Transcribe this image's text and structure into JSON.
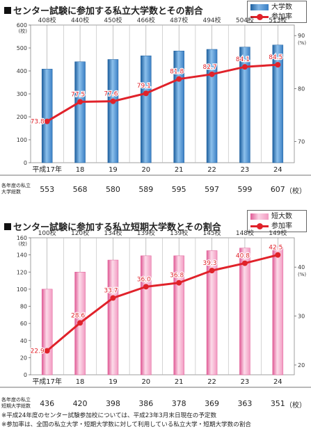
{
  "chart_data": [
    {
      "type": "bar",
      "title": "センター試験に参加する私立大学数とその割合",
      "categories": [
        "平成17年",
        "18",
        "19",
        "20",
        "21",
        "22",
        "23",
        "24"
      ],
      "series": [
        {
          "name": "大学数",
          "values": [
            408,
            440,
            450,
            466,
            487,
            494,
            504,
            513
          ],
          "axis": "left",
          "color": "#3a7fc4"
        },
        {
          "name": "参加率",
          "values": [
            73.8,
            77.5,
            77.6,
            79.1,
            81.8,
            82.7,
            84.1,
            84.5
          ],
          "axis": "right",
          "color": "#e0222a"
        }
      ],
      "bar_labels": [
        "408校",
        "440校",
        "450校",
        "466校",
        "487校",
        "494校",
        "504校",
        "513校"
      ],
      "rate_labels": [
        "73.8",
        "77.5",
        "77.6",
        "79.1",
        "81.8",
        "82.7",
        "84.1",
        "84.5"
      ],
      "ylim_left": [
        0,
        600
      ],
      "yticks_left": [
        "0",
        "100",
        "200",
        "300",
        "400",
        "500",
        "600"
      ],
      "ylabel_left": "(校)",
      "ylim_right": [
        66,
        92
      ],
      "yticks_right": [
        "70",
        "80",
        "90"
      ],
      "ylabel_right": "(%)",
      "table_label_line1": "各年度の私立",
      "table_label_line2": "大学総数",
      "table_values": [
        "553",
        "568",
        "580",
        "589",
        "595",
        "597",
        "599",
        "607"
      ],
      "table_unit": "（校）",
      "legend_bar": "大学数",
      "legend_line": "参加率",
      "grid": true,
      "legend_position": "top-right"
    },
    {
      "type": "bar",
      "title": "センター試験に参加する私立短期大学数とその割合",
      "categories": [
        "平成17年",
        "18",
        "19",
        "20",
        "21",
        "22",
        "23",
        "24"
      ],
      "series": [
        {
          "name": "短大数",
          "values": [
            100,
            120,
            134,
            139,
            139,
            145,
            148,
            149
          ],
          "axis": "left",
          "color": "#f4a3c6"
        },
        {
          "name": "参加率",
          "values": [
            22.9,
            28.6,
            33.7,
            36.0,
            36.8,
            39.3,
            40.8,
            42.5
          ],
          "axis": "right",
          "color": "#e0222a"
        }
      ],
      "bar_labels": [
        "100校",
        "120校",
        "134校",
        "139校",
        "139校",
        "145校",
        "148校",
        "149校"
      ],
      "rate_labels": [
        "22.9",
        "28.6",
        "33.7",
        "36.0",
        "36.8",
        "39.3",
        "40.8",
        "42.5"
      ],
      "ylim_left": [
        0,
        160
      ],
      "yticks_left": [
        "0",
        "20",
        "40",
        "60",
        "80",
        "100",
        "120",
        "140",
        "160"
      ],
      "ylabel_left": "(校)",
      "ylim_right": [
        18,
        46
      ],
      "yticks_right": [
        "20",
        "30",
        "40"
      ],
      "ylabel_right": "(%)",
      "table_label_line1": "各年度の私立",
      "table_label_line2": "短期大学総数",
      "table_values": [
        "436",
        "420",
        "398",
        "386",
        "378",
        "369",
        "363",
        "351"
      ],
      "table_unit": "（校）",
      "legend_bar": "短大数",
      "legend_line": "参加率",
      "grid": true,
      "legend_position": "top-right"
    }
  ],
  "notes": [
    "※平成24年度のセンター試験参加校については、平成23年3月末日現在の予定数",
    "※参加率は、全国の私立大学・短期大学数に対して利用している私立大学・短期大学数の割合"
  ]
}
